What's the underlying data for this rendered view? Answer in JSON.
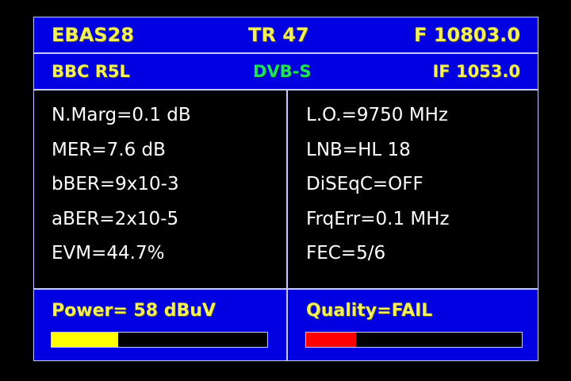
{
  "header": {
    "satellite": "EBAS28",
    "transponder": "TR 47",
    "frequency": "F 10803.0"
  },
  "subheader": {
    "channel": "BBC R5L",
    "standard": "DVB-S",
    "if": "IF 1053.0",
    "standard_color": "#20e060"
  },
  "left": [
    "N.Marg=0.1 dB",
    "MER=7.6 dB",
    "bBER=9x10-3",
    "aBER=2x10-5",
    "EVM=44.7%"
  ],
  "right": [
    "L.O.=9750 MHz",
    "LNB=HL 18",
    "DiSEqC=OFF",
    "FrqErr=0.1 MHz",
    "FEC=5/6"
  ],
  "power": {
    "label": "Power=  58 dBuV",
    "level_percent": 31,
    "color": "#ffff00"
  },
  "quality": {
    "label": "Quality=FAIL",
    "level_percent": 23,
    "color": "#ff0000"
  }
}
